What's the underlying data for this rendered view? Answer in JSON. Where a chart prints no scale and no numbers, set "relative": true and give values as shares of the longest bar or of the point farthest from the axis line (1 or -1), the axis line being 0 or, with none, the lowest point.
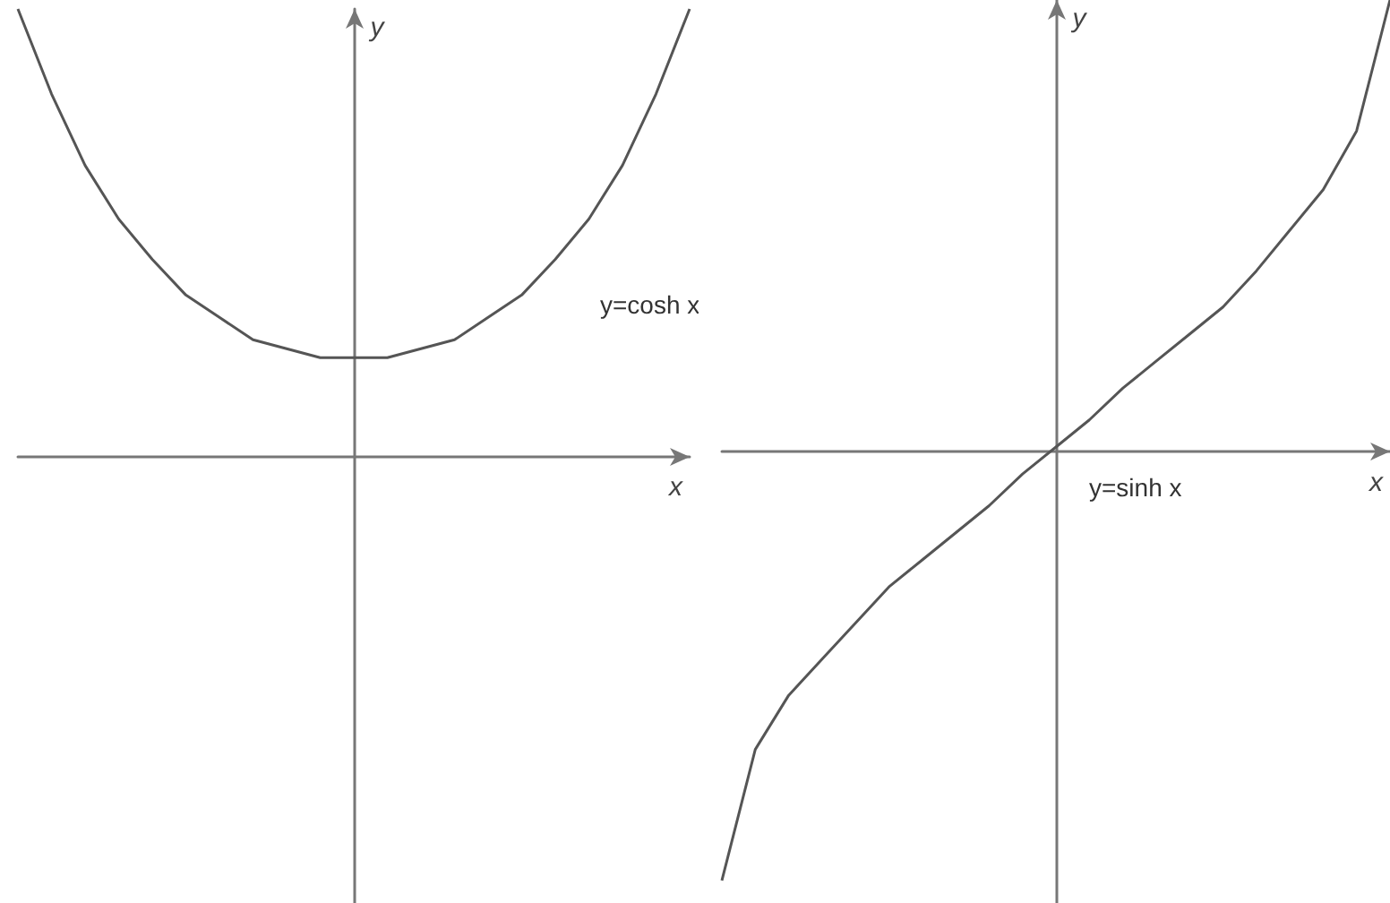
{
  "chart_data": [
    {
      "type": "line",
      "relative": true,
      "xlabel": "x",
      "ylabel": "y",
      "annotations": [
        "y=cosh x"
      ],
      "marker": "none",
      "categories": [
        null,
        null,
        null,
        null,
        null,
        null,
        null,
        null,
        null,
        null,
        null,
        null,
        null,
        null,
        null,
        null,
        null,
        null,
        null,
        null,
        null
      ],
      "series": [
        {
          "color": "#555555",
          "values": [
            1,
            0.81,
            0.65,
            0.53,
            0.44,
            0.36,
            0.31,
            0.26,
            0.24,
            0.22,
            0.22,
            0.22,
            0.24,
            0.26,
            0.31,
            0.36,
            0.44,
            0.53,
            0.65,
            0.81,
            1
          ]
        }
      ]
    },
    {
      "type": "line",
      "relative": true,
      "xlabel": "x",
      "ylabel": "y",
      "annotations": [
        "y=sinh x"
      ],
      "marker": "none",
      "categories": [
        null,
        null,
        null,
        null,
        null,
        null,
        null,
        null,
        null,
        null,
        null,
        null,
        null,
        null,
        null,
        null,
        null,
        null,
        null,
        null,
        null
      ],
      "series": [
        {
          "color": "#555555",
          "values": [
            -0.95,
            -0.66,
            -0.54,
            -0.46,
            -0.38,
            -0.3,
            -0.24,
            -0.18,
            -0.12,
            -0.05,
            0.01,
            0.07,
            0.14,
            0.2,
            0.26,
            0.32,
            0.4,
            0.49,
            0.58,
            0.71,
            1
          ]
        }
      ]
    }
  ]
}
